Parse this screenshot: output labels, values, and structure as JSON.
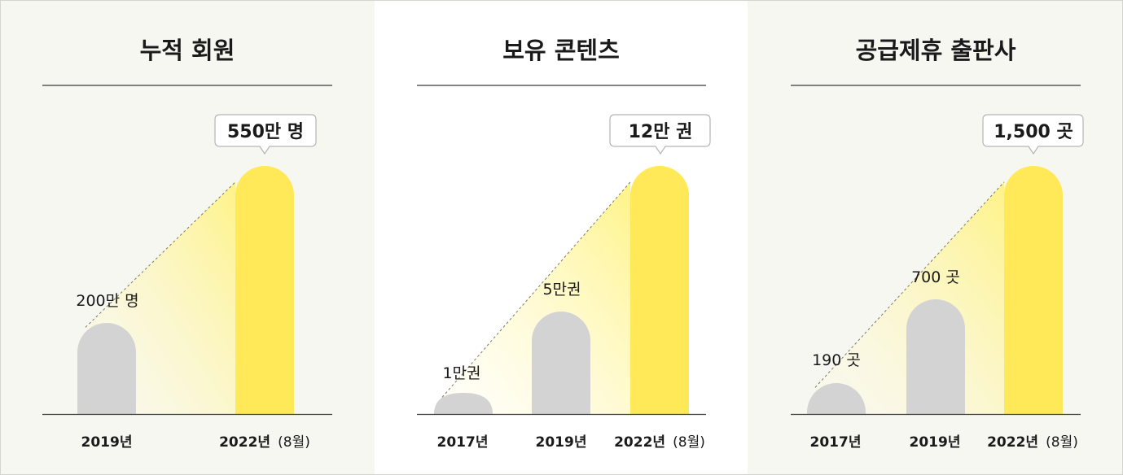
{
  "chart_data": [
    {
      "type": "bar",
      "title": "누적 회원",
      "categories": [
        "2019년",
        "2022년"
      ],
      "category_notes": [
        "",
        "(8월)"
      ],
      "values": [
        200,
        550
      ],
      "value_labels": [
        "200만 명",
        "550만 명"
      ],
      "unit": "만 명",
      "highlight_index": 1
    },
    {
      "type": "bar",
      "title": "보유 콘텐츠",
      "categories": [
        "2017년",
        "2019년",
        "2022년"
      ],
      "category_notes": [
        "",
        "",
        "(8월)"
      ],
      "values": [
        1,
        5,
        12
      ],
      "value_labels": [
        "1만권",
        "5만권",
        "12만 권"
      ],
      "unit": "만 권",
      "highlight_index": 2
    },
    {
      "type": "bar",
      "title": "공급제휴 출판사",
      "categories": [
        "2017년",
        "2019년",
        "2022년"
      ],
      "category_notes": [
        "",
        "",
        "(8월)"
      ],
      "values": [
        190,
        700,
        1500
      ],
      "value_labels": [
        "190 곳",
        "700 곳",
        "1,500 곳"
      ],
      "unit": "곳",
      "highlight_index": 2
    }
  ],
  "colors": {
    "highlight": "#ffe958",
    "base_bar": "#d3d3d3",
    "beam": "#fff7b0",
    "line": "#3a3a3a",
    "callout_border": "#b5b5b5"
  }
}
